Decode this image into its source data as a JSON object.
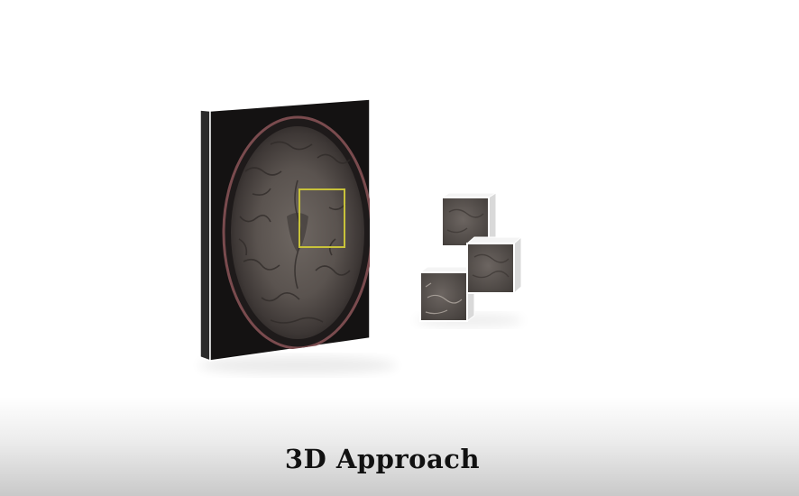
{
  "caption": {
    "text": "3D Approach"
  },
  "scene": {
    "slab": "mri-axial-brain-slab",
    "roi_color": "#c8c23a",
    "patch_count": 3
  }
}
